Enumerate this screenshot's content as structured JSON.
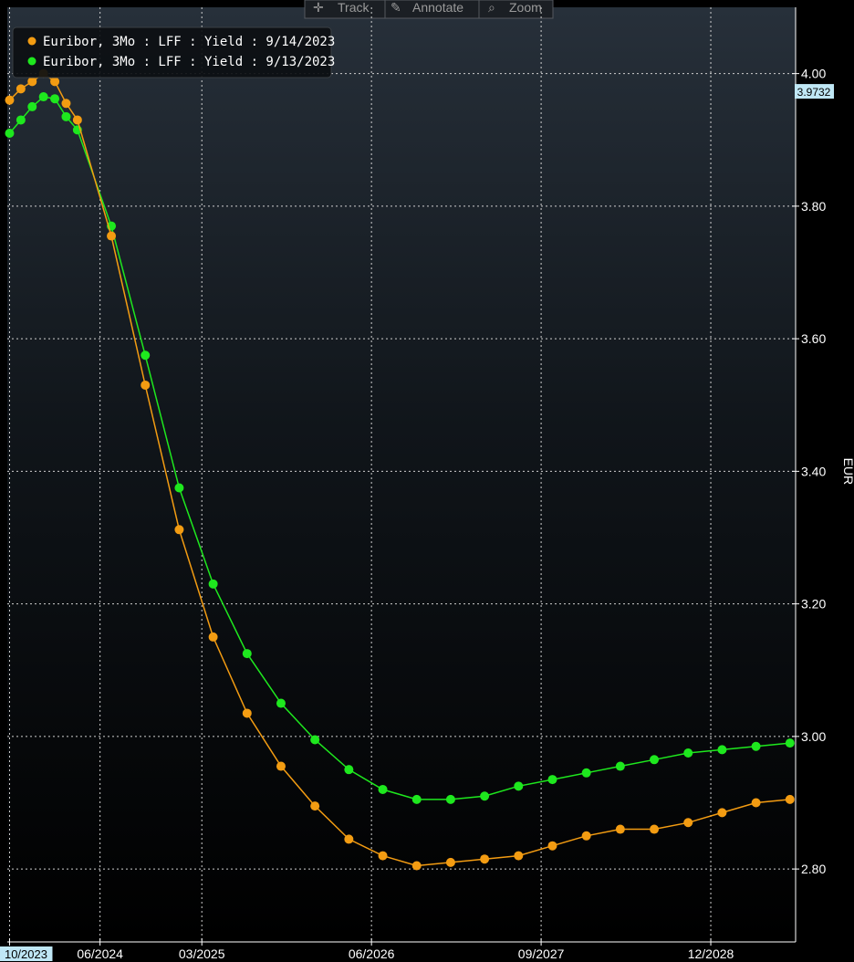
{
  "toolbar": {
    "track_label": "Track",
    "annotate_label": "Annotate",
    "zoom_label": "Zoom"
  },
  "chart_data": {
    "type": "line",
    "ylabel": "EUR",
    "ylim": [
      2.69,
      4.1
    ],
    "yticks": [
      2.8,
      3.0,
      3.2,
      3.4,
      3.6,
      3.8,
      4.0
    ],
    "ytick_labels": [
      "2.80",
      "3.00",
      "3.20",
      "3.40",
      "3.60",
      "3.80",
      "4.00"
    ],
    "xticks": [
      {
        "label": "10/2023",
        "x": 0,
        "highlighted": true
      },
      {
        "label": "06/2024",
        "x": 8
      },
      {
        "label": "03/2025",
        "x": 17
      },
      {
        "label": "06/2026",
        "x": 32
      },
      {
        "label": "09/2027",
        "x": 47
      },
      {
        "label": "12/2028",
        "x": 62
      }
    ],
    "x_range": [
      -0.2,
      69.5
    ],
    "x": [
      0,
      1,
      2,
      3,
      4,
      5,
      6,
      9,
      12,
      15,
      18,
      21,
      24,
      27,
      30,
      33,
      36,
      39,
      42,
      45,
      48,
      51,
      54,
      57,
      60,
      63,
      66,
      69
    ],
    "grid": true,
    "legend_position": "top-left",
    "last_value_label": "3.9732",
    "series": [
      {
        "name": "Euribor, 3Mo : LFF : Yield : 9/14/2023",
        "color": "#f39c12",
        "values": [
          3.96,
          3.977,
          3.988,
          4.0,
          3.988,
          3.955,
          3.93,
          3.755,
          3.53,
          3.312,
          3.15,
          3.035,
          2.955,
          2.895,
          2.845,
          2.82,
          2.805,
          2.81,
          2.815,
          2.82,
          2.835,
          2.85,
          2.86,
          2.86,
          2.87,
          2.885,
          2.9,
          2.905
        ]
      },
      {
        "name": "Euribor, 3Mo : LFF : Yield : 9/13/2023",
        "color": "#1ee81e",
        "values": [
          3.91,
          3.93,
          3.95,
          3.965,
          3.962,
          3.935,
          3.915,
          3.77,
          3.575,
          3.375,
          3.23,
          3.125,
          3.05,
          2.995,
          2.95,
          2.92,
          2.905,
          2.905,
          2.91,
          2.925,
          2.935,
          2.945,
          2.955,
          2.965,
          2.975,
          2.98,
          2.985,
          2.99
        ]
      }
    ]
  }
}
